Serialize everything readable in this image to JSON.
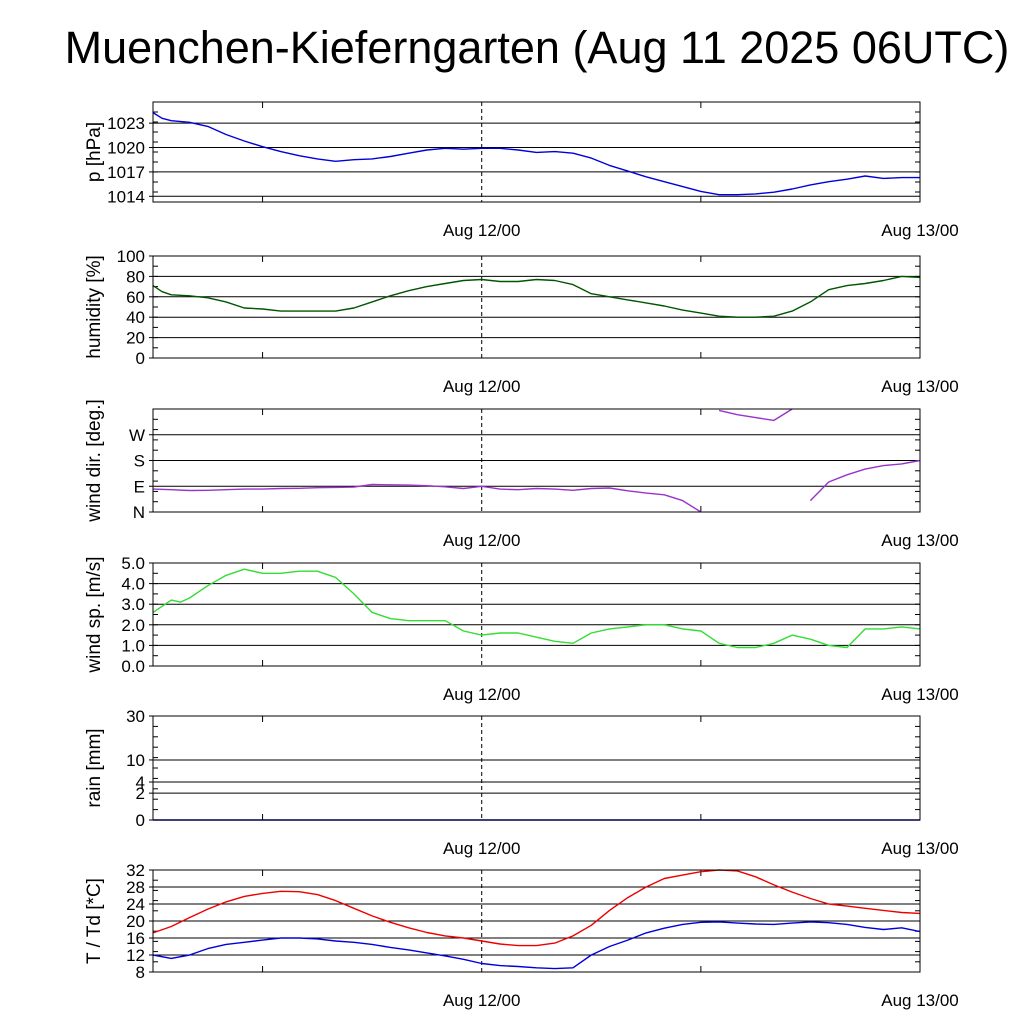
{
  "title": "Muenchen-Kieferngarten (Aug 11 2025 06UTC)",
  "time_axis": {
    "start_hours": 6,
    "end_hours": 48,
    "unit": "hours since Aug 11 2025 00UTC",
    "tick_labels": [
      {
        "hours": 24,
        "label": "Aug 12/00"
      },
      {
        "hours": 48,
        "label": "Aug 13/00"
      }
    ],
    "minor_ticks_hours": [
      12,
      36
    ]
  },
  "chart_data": [
    {
      "name": "pressure",
      "type": "line",
      "ylabel": "p [hPa]",
      "ylim": [
        1013.3,
        1025.6
      ],
      "yticks": [
        1014,
        1017,
        1020,
        1023
      ],
      "yticklabels": [
        "1014",
        "1017",
        "1020",
        "1023"
      ],
      "color": "#0000dd",
      "x": [
        6,
        6.5,
        7,
        8,
        9,
        10,
        11,
        12,
        13,
        14,
        15,
        16,
        17,
        18,
        19,
        20,
        21,
        22,
        23,
        24,
        25,
        26,
        27,
        28,
        29,
        30,
        31,
        32,
        33,
        34,
        35,
        36,
        37,
        38,
        39,
        40,
        41,
        42,
        43,
        44,
        45,
        46,
        47,
        48
      ],
      "values": [
        1024.3,
        1023.6,
        1023.3,
        1023.1,
        1022.6,
        1021.6,
        1020.8,
        1020.1,
        1019.5,
        1019.0,
        1018.6,
        1018.3,
        1018.5,
        1018.6,
        1018.9,
        1019.3,
        1019.7,
        1019.9,
        1019.8,
        1019.9,
        1019.9,
        1019.7,
        1019.4,
        1019.5,
        1019.3,
        1018.7,
        1017.8,
        1017.1,
        1016.4,
        1015.8,
        1015.2,
        1014.6,
        1014.2,
        1014.2,
        1014.3,
        1014.5,
        1014.9,
        1015.4,
        1015.8,
        1016.1,
        1016.5,
        1016.2,
        1016.3,
        1016.3
      ]
    },
    {
      "name": "humidity",
      "type": "line",
      "ylabel": "humidity [%]",
      "ylim": [
        0,
        100
      ],
      "yticks": [
        0,
        20,
        40,
        60,
        80,
        100
      ],
      "yticklabels": [
        "0",
        "20",
        "40",
        "60",
        "80",
        "100"
      ],
      "color": "#005500",
      "x": [
        6,
        6.5,
        7,
        8,
        9,
        10,
        11,
        12,
        13,
        14,
        15,
        16,
        17,
        18,
        19,
        20,
        21,
        22,
        23,
        24,
        25,
        26,
        27,
        28,
        29,
        30,
        31,
        32,
        33,
        34,
        35,
        36,
        37,
        38,
        39,
        40,
        41,
        42,
        43,
        44,
        45,
        46,
        47,
        48
      ],
      "values": [
        71,
        65,
        62,
        61,
        59,
        55,
        49,
        48,
        46,
        46,
        46,
        46,
        49,
        55,
        61,
        66,
        70,
        73,
        76,
        77,
        75,
        75,
        77,
        76,
        72,
        63,
        60,
        57,
        54,
        51,
        47,
        44,
        41,
        40,
        40,
        41,
        46,
        55,
        67,
        71,
        73,
        76,
        80,
        79
      ]
    },
    {
      "name": "wind_direction",
      "type": "line",
      "ylabel": "wind dir. [deg.]",
      "ylim": [
        0,
        360
      ],
      "yticks": [
        0,
        90,
        180,
        270
      ],
      "yticklabels": [
        "N",
        "E",
        "S",
        "W"
      ],
      "color": "#9933cc",
      "x": [
        6,
        7,
        8,
        9,
        10,
        11,
        12,
        13,
        14,
        15,
        16,
        17,
        18,
        19,
        20,
        21,
        22,
        23,
        24,
        25,
        26,
        27,
        28,
        29,
        30,
        31,
        32,
        33,
        34,
        35,
        36,
        37,
        38,
        39,
        40,
        41,
        42,
        43,
        44,
        45,
        46,
        47,
        48
      ],
      "values": [
        80,
        78,
        75,
        76,
        78,
        80,
        80,
        82,
        83,
        85,
        86,
        87,
        96,
        95,
        94,
        92,
        88,
        82,
        90,
        80,
        78,
        82,
        80,
        76,
        82,
        84,
        74,
        66,
        60,
        40,
        0,
        355,
        340,
        330,
        320,
        360,
        40,
        105,
        130,
        150,
        162,
        168,
        180
      ]
    },
    {
      "name": "wind_speed",
      "type": "line",
      "ylabel": "wind sp. [m/s]",
      "ylim": [
        0,
        5
      ],
      "yticks": [
        0,
        1,
        2,
        3,
        4,
        5
      ],
      "yticklabels": [
        "0.0",
        "1.0",
        "2.0",
        "3.0",
        "4.0",
        "5.0"
      ],
      "color": "#33dd33",
      "x": [
        6,
        6.5,
        7,
        7.5,
        8,
        9,
        10,
        11,
        12,
        13,
        14,
        15,
        16,
        17,
        18,
        19,
        20,
        21,
        22,
        23,
        24,
        25,
        26,
        27,
        28,
        29,
        30,
        31,
        32,
        33,
        34,
        35,
        36,
        37,
        38,
        39,
        40,
        41,
        42,
        43,
        44,
        45,
        46,
        47,
        48
      ],
      "values": [
        2.6,
        2.9,
        3.2,
        3.1,
        3.3,
        3.9,
        4.4,
        4.7,
        4.5,
        4.5,
        4.6,
        4.6,
        4.3,
        3.5,
        2.6,
        2.3,
        2.2,
        2.2,
        2.2,
        1.7,
        1.5,
        1.6,
        1.6,
        1.4,
        1.2,
        1.1,
        1.6,
        1.8,
        1.9,
        2.0,
        2.0,
        1.8,
        1.7,
        1.1,
        0.9,
        0.9,
        1.1,
        1.5,
        1.3,
        1.0,
        0.9,
        1.8,
        1.8,
        1.9,
        1.8
      ]
    },
    {
      "name": "rain",
      "type": "line",
      "ylabel": "rain [mm]",
      "ylim": [
        0,
        30
      ],
      "yticks": [
        0,
        2,
        4,
        10,
        30
      ],
      "yticklabels": [
        "0",
        "2",
        "4",
        "10",
        "30"
      ],
      "color": "#0000cc",
      "x": [
        6,
        48
      ],
      "values": [
        0,
        0
      ]
    },
    {
      "name": "temperature",
      "type": "line",
      "ylabel": "T / Td [*C]",
      "ylim": [
        8,
        32
      ],
      "yticks": [
        8,
        12,
        16,
        20,
        24,
        28,
        32
      ],
      "yticklabels": [
        "8",
        "12",
        "16",
        "20",
        "24",
        "28",
        "32"
      ],
      "series": [
        {
          "name": "T",
          "color": "#ee0000",
          "x": [
            6,
            7,
            8,
            9,
            10,
            11,
            12,
            13,
            14,
            15,
            16,
            17,
            18,
            19,
            20,
            21,
            22,
            23,
            24,
            25,
            26,
            27,
            28,
            29,
            30,
            31,
            32,
            33,
            34,
            35,
            36,
            37,
            38,
            39,
            40,
            41,
            42,
            43,
            44,
            45,
            46,
            47,
            48
          ],
          "values": [
            17.2,
            18.7,
            20.8,
            22.8,
            24.5,
            25.8,
            26.5,
            27.0,
            26.9,
            26.2,
            24.8,
            23.0,
            21.2,
            19.7,
            18.4,
            17.3,
            16.5,
            16.0,
            15.3,
            14.6,
            14.2,
            14.2,
            14.8,
            16.5,
            19.0,
            22.5,
            25.5,
            28.0,
            30.0,
            30.8,
            31.6,
            32.0,
            31.8,
            30.4,
            28.5,
            26.8,
            25.3,
            24.0,
            23.5,
            23.0,
            22.5,
            22.0,
            21.8
          ]
        },
        {
          "name": "Td",
          "color": "#0000dd",
          "x": [
            6,
            7,
            8,
            9,
            10,
            11,
            12,
            13,
            14,
            15,
            16,
            17,
            18,
            19,
            20,
            21,
            22,
            23,
            24,
            25,
            26,
            27,
            28,
            29,
            30,
            31,
            32,
            33,
            34,
            35,
            36,
            37,
            38,
            39,
            40,
            41,
            42,
            43,
            44,
            45,
            46,
            47,
            48
          ],
          "values": [
            12.0,
            11.2,
            12.0,
            13.5,
            14.5,
            15.0,
            15.5,
            16.0,
            16.0,
            15.8,
            15.3,
            15.0,
            14.5,
            13.8,
            13.2,
            12.5,
            11.8,
            11.0,
            10.0,
            9.5,
            9.3,
            9.0,
            8.8,
            9.0,
            12.0,
            14.0,
            15.5,
            17.2,
            18.3,
            19.2,
            19.7,
            19.8,
            19.5,
            19.3,
            19.2,
            19.5,
            19.8,
            19.6,
            19.2,
            18.5,
            18.0,
            18.4,
            17.5
          ]
        }
      ]
    }
  ]
}
